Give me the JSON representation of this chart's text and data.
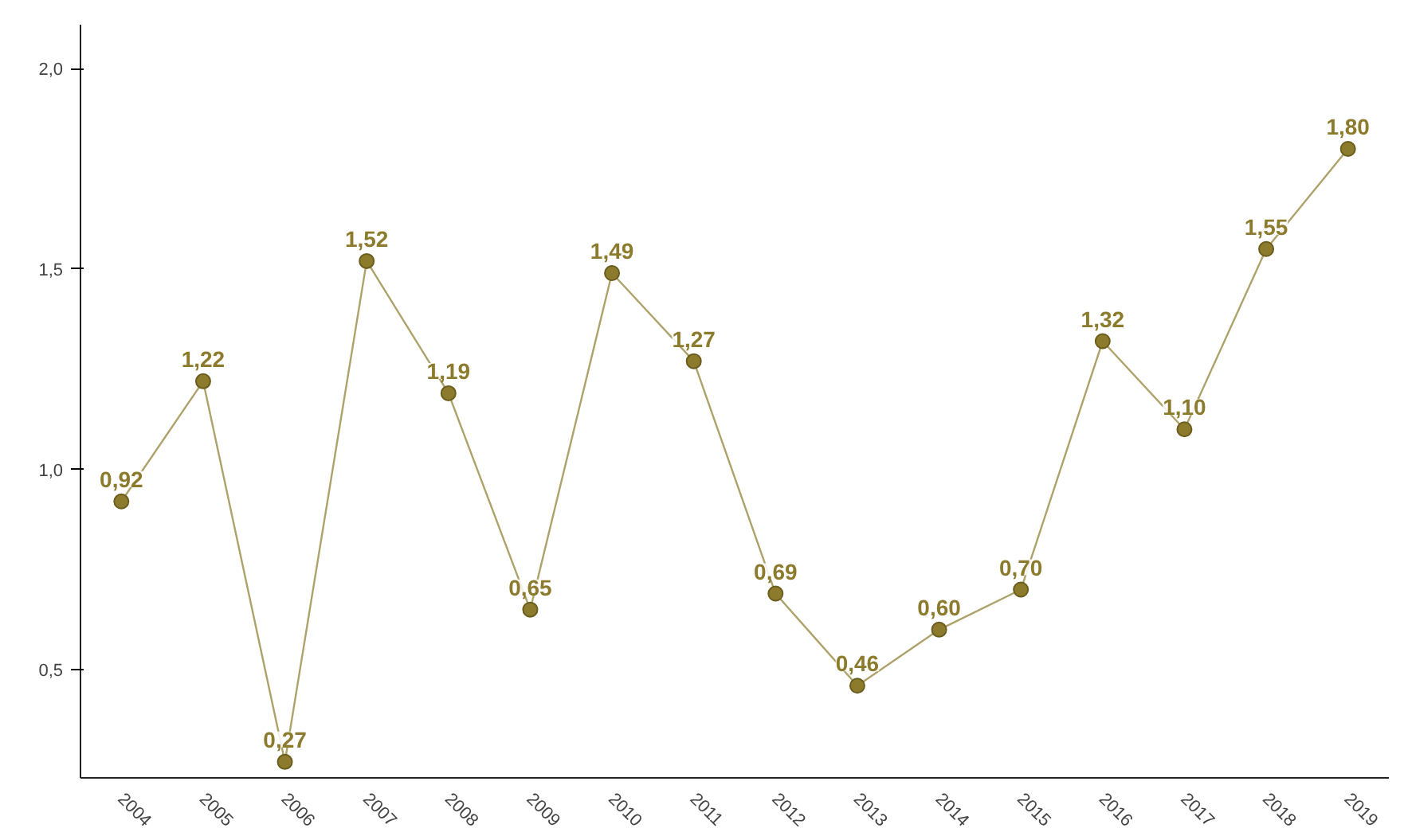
{
  "chart_data": {
    "type": "line",
    "categories": [
      "2004",
      "2005",
      "2006",
      "2007",
      "2008",
      "2009",
      "2010",
      "2011",
      "2012",
      "2013",
      "2014",
      "2015",
      "2016",
      "2017",
      "2018",
      "2019"
    ],
    "series": [
      {
        "color": "#8c7b2c",
        "values": [
          0.92,
          1.22,
          0.27,
          1.52,
          1.19,
          0.65,
          1.49,
          1.27,
          0.69,
          0.46,
          0.6,
          0.7,
          1.32,
          1.1,
          1.55,
          1.8
        ],
        "value_labels": [
          "0,92",
          "1,22",
          "0,27",
          "1,52",
          "1,19",
          "0,65",
          "1,49",
          "1,27",
          "0,69",
          "0,46",
          "0,60",
          "0,70",
          "1,32",
          "1,10",
          "1,55",
          "1,80"
        ]
      }
    ],
    "ylim": [
      0.23,
      2.11
    ],
    "yticks": [
      {
        "value": 0.5,
        "label": "0,5"
      },
      {
        "value": 1.0,
        "label": "1,0"
      },
      {
        "value": 1.5,
        "label": "1,5"
      },
      {
        "value": 2.0,
        "label": "2,0"
      }
    ],
    "grid": false,
    "marker": "circle",
    "line_style": "solid"
  }
}
